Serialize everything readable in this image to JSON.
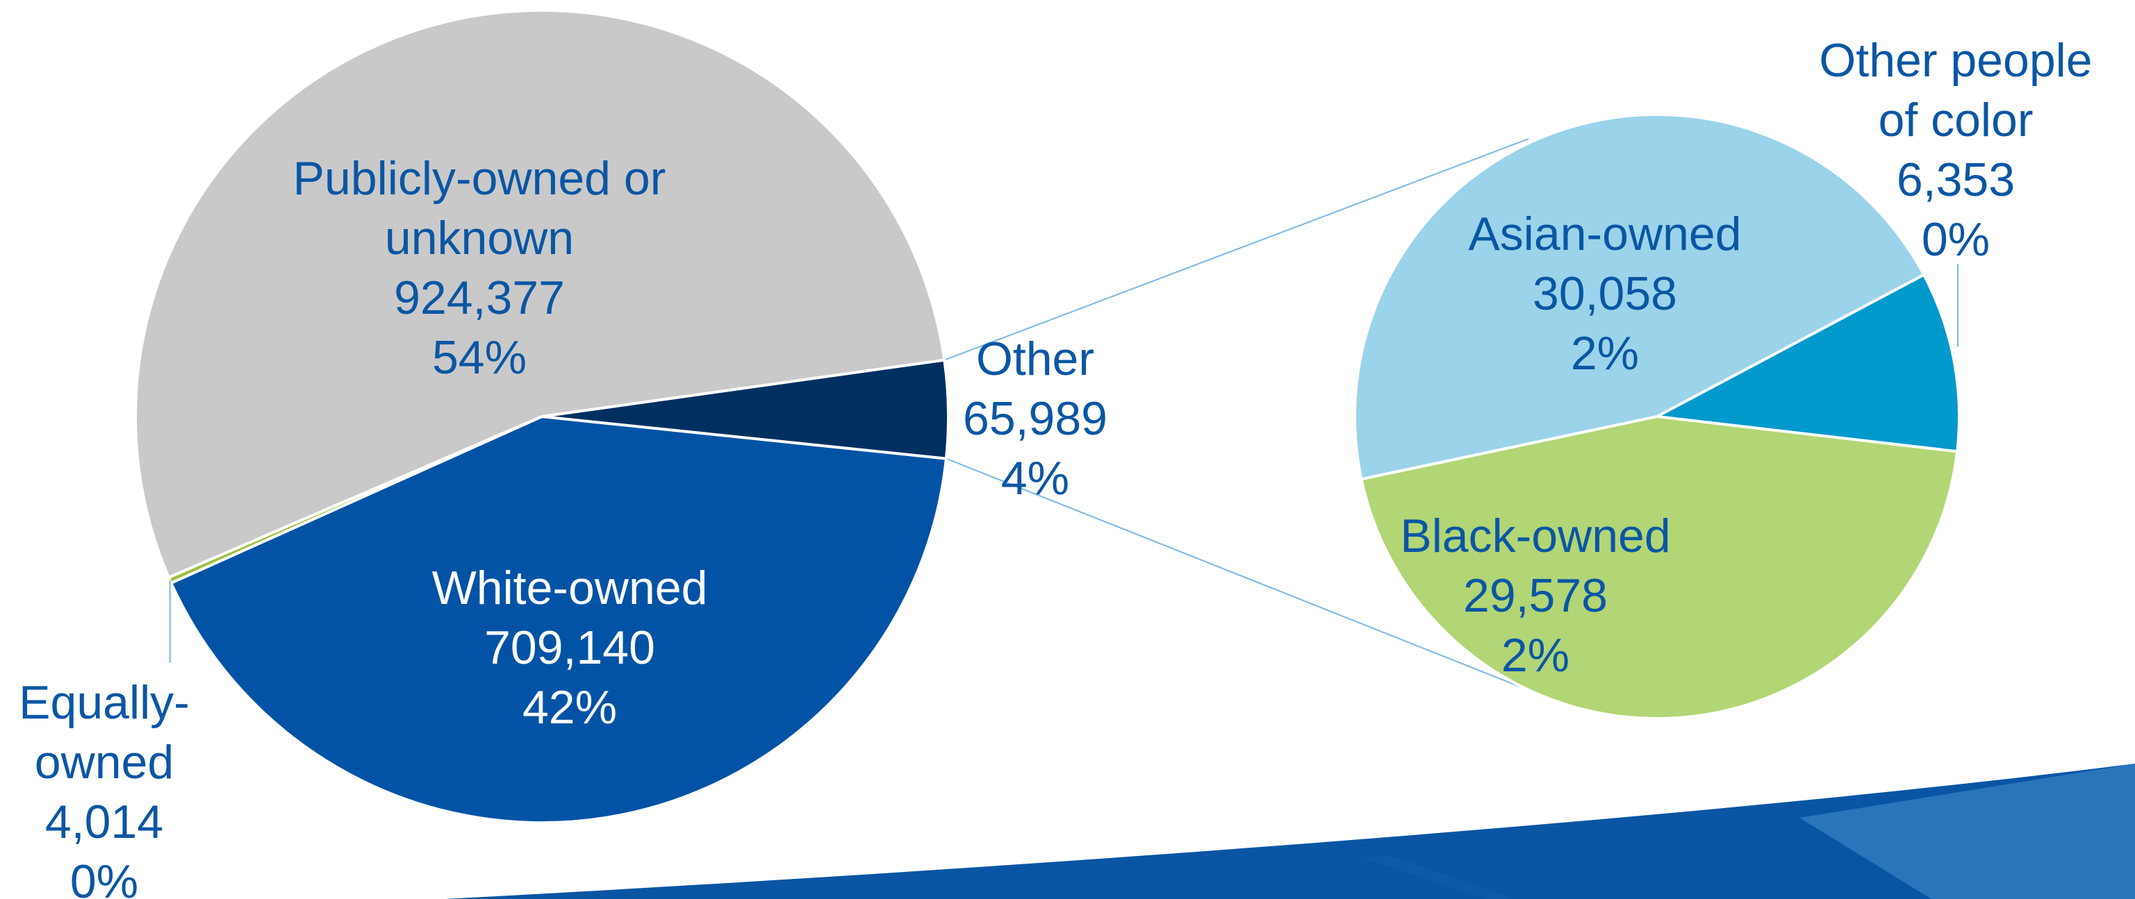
{
  "chart_data": {
    "type": "pie",
    "subtype": "pie-of-pie",
    "label_color": "#0a56a4",
    "slices": [
      {
        "label_lines": [
          "Publicly-owned or",
          "unknown"
        ],
        "value": "924,377",
        "percent": "54%",
        "color": "#c9c9c9"
      },
      {
        "label_lines": [
          "White-owned"
        ],
        "value": "709,140",
        "percent": "42%",
        "color": "#0253a5"
      },
      {
        "label_lines": [
          "Equally-",
          "owned"
        ],
        "value": "4,014",
        "percent": "0%",
        "color": "#9cc03f"
      },
      {
        "label_lines": [
          "Other"
        ],
        "value": "65,989",
        "percent": "4%",
        "color": "#003060"
      }
    ],
    "breakdown": {
      "of": "Other",
      "slices": [
        {
          "label_lines": [
            "Asian-owned"
          ],
          "value": "30,058",
          "percent": "2%",
          "color": "#9bd3ea"
        },
        {
          "label_lines": [
            "Other people",
            "of color"
          ],
          "value": "6,353",
          "percent": "0%",
          "color": "#0099cc"
        },
        {
          "label_lines": [
            "Black-owned"
          ],
          "value": "29,578",
          "percent": "2%",
          "color": "#b2d575"
        }
      ]
    }
  },
  "decoration": {
    "swoosh_colors": [
      "#0a55a3",
      "#2a74bb",
      "#0e5fae"
    ]
  }
}
